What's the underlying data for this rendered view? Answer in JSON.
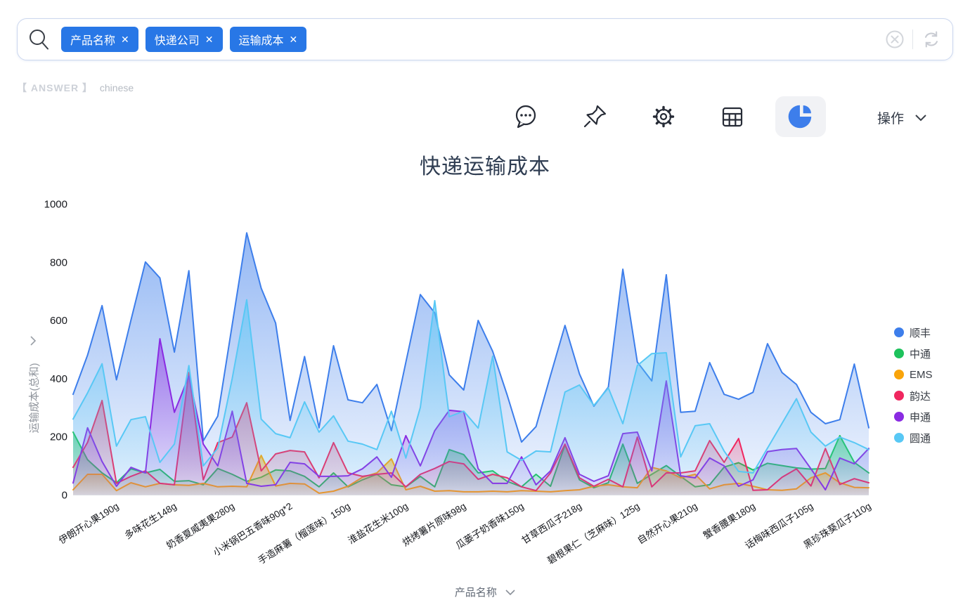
{
  "search_bar": {
    "chips": [
      {
        "label": "产品名称",
        "close": "✕"
      },
      {
        "label": "快递公司",
        "close": "✕"
      },
      {
        "label": "运输成本",
        "close": "✕"
      }
    ]
  },
  "answer_bar": {
    "prefix": "【 ANSWER 】",
    "lang": "chinese"
  },
  "toolbar": {
    "icons": [
      "comment",
      "pin",
      "settings",
      "table",
      "pie-chart"
    ],
    "active_icon": "pie-chart",
    "action_label": "操作"
  },
  "chart_data": {
    "type": "area",
    "title": "快递运输成本",
    "xlabel": "产品名称",
    "ylabel": "运输成本(总和)",
    "ylim": [
      0,
      1000
    ],
    "yticks": [
      0,
      200,
      400,
      600,
      800,
      1000
    ],
    "grid": false,
    "legend_position": "right",
    "x_label_rotation": -32,
    "num_points": 56,
    "label_start_index": 3,
    "points_per_label": 4,
    "categories": [
      "伊朗开心果190g",
      "多味花生148g",
      "奶香夏威夷果280g",
      "小米锅巴五香味90g*2",
      "手造麻薯（榴莲味）150g",
      "淮盐花生米100g",
      "烘烤薯片原味98g",
      "瓜蒌子奶香味150g",
      "甘草西瓜子218g",
      "碧根果仁（芝麻味）125g",
      "自然开心果210g",
      "蟹香腰果180g",
      "话梅味西瓜子105g",
      "黑珍珠葵瓜子110g"
    ],
    "series": [
      {
        "name": "顺丰",
        "color": "#3D7EEB",
        "values": [
          345,
          480,
          650,
          395,
          600,
          800,
          745,
          490,
          770,
          185,
          270,
          585,
          900,
          710,
          590,
          255,
          475,
          230,
          512,
          326,
          316,
          379,
          220,
          455,
          688,
          625,
          412,
          360,
          599,
          493,
          343,
          181,
          234,
          410,
          582,
          415,
          304,
          370,
          775,
          456,
          391,
          756,
          283,
          287,
          454,
          345,
          328,
          352,
          519,
          420,
          379,
          283,
          244,
          258,
          449,
          230
        ]
      },
      {
        "name": "中通",
        "color": "#1DC25C",
        "values": [
          215,
          120,
          75,
          41,
          89,
          75,
          87,
          46,
          48,
          34,
          90,
          70,
          46,
          60,
          85,
          82,
          63,
          27,
          75,
          27,
          51,
          70,
          34,
          27,
          63,
          27,
          155,
          138,
          75,
          82,
          46,
          27,
          70,
          29,
          171,
          51,
          24,
          41,
          174,
          39,
          70,
          100,
          63,
          27,
          34,
          95,
          110,
          85,
          108,
          100,
          92,
          88,
          90,
          203,
          111,
          75
        ]
      },
      {
        "name": "EMS",
        "color": "#F9A40A",
        "values": [
          17,
          70,
          70,
          14,
          41,
          27,
          39,
          34,
          32,
          39,
          27,
          29,
          27,
          135,
          30,
          39,
          37,
          5,
          12,
          29,
          60,
          75,
          123,
          17,
          29,
          12,
          14,
          10,
          10,
          12,
          10,
          14,
          12,
          10,
          14,
          17,
          29,
          34,
          27,
          24,
          94,
          82,
          58,
          70,
          20,
          34,
          39,
          29,
          17,
          15,
          20,
          58,
          75,
          41,
          25,
          24
        ]
      },
      {
        "name": "韵达",
        "color": "#F0275F",
        "values": [
          94,
          180,
          324,
          39,
          63,
          82,
          39,
          34,
          420,
          51,
          179,
          198,
          316,
          82,
          140,
          152,
          147,
          58,
          179,
          75,
          63,
          70,
          75,
          27,
          70,
          90,
          114,
          106,
          53,
          70,
          58,
          27,
          14,
          75,
          174,
          58,
          29,
          53,
          27,
          198,
          27,
          75,
          75,
          82,
          186,
          111,
          193,
          15,
          17,
          60,
          89,
          30,
          159,
          35,
          55,
          41
        ]
      },
      {
        "name": "申通",
        "color": "#8A2BE2",
        "values": [
          40,
          230,
          114,
          29,
          94,
          75,
          536,
          283,
          408,
          174,
          99,
          287,
          39,
          29,
          34,
          111,
          106,
          63,
          63,
          65,
          89,
          130,
          60,
          203,
          99,
          220,
          290,
          285,
          89,
          39,
          39,
          130,
          34,
          82,
          196,
          70,
          46,
          65,
          210,
          215,
          82,
          391,
          65,
          58,
          126,
          99,
          29,
          51,
          148,
          155,
          159,
          89,
          17,
          126,
          106,
          159
        ]
      },
      {
        "name": "圆通",
        "color": "#58C8F5",
        "values": [
          260,
          350,
          450,
          167,
          258,
          268,
          111,
          174,
          444,
          99,
          160,
          400,
          670,
          260,
          210,
          196,
          319,
          215,
          271,
          184,
          174,
          155,
          287,
          126,
          300,
          667,
          268,
          287,
          229,
          476,
          147,
          118,
          150,
          147,
          353,
          377,
          307,
          367,
          244,
          444,
          485,
          488,
          130,
          237,
          244,
          150,
          80,
          75,
          160,
          245,
          330,
          215,
          167,
          198,
          179,
          155
        ]
      }
    ]
  }
}
